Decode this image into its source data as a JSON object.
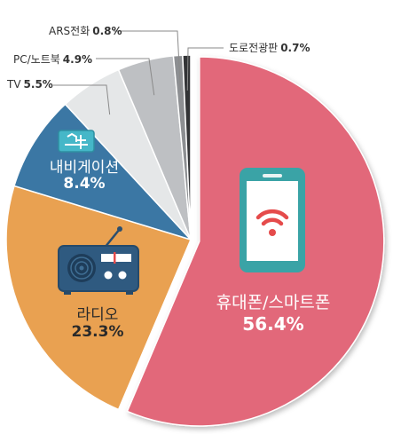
{
  "chart_data": {
    "type": "pie",
    "categories": [
      "휴대폰/스마트폰",
      "라디오",
      "내비게이션",
      "TV",
      "PC/노트북",
      "ARS전화",
      "도로전광판"
    ],
    "values": [
      56.4,
      23.3,
      8.4,
      5.5,
      4.9,
      0.8,
      0.7
    ],
    "value_labels": [
      "56.4%",
      "23.3%",
      "8.4%",
      "5.5%",
      "4.9%",
      "0.8%",
      "0.7%"
    ],
    "colors": [
      "#E2677A",
      "#E9A151",
      "#3B77A4",
      "#E5E7E8",
      "#BEC0C3",
      "#8D8F92",
      "#333436"
    ],
    "exploded": "휴대폰/스마트폰",
    "icon_names": [
      "smartphone-icon",
      "radio-icon",
      "navigation-icon"
    ],
    "title": "",
    "legend": "none"
  }
}
